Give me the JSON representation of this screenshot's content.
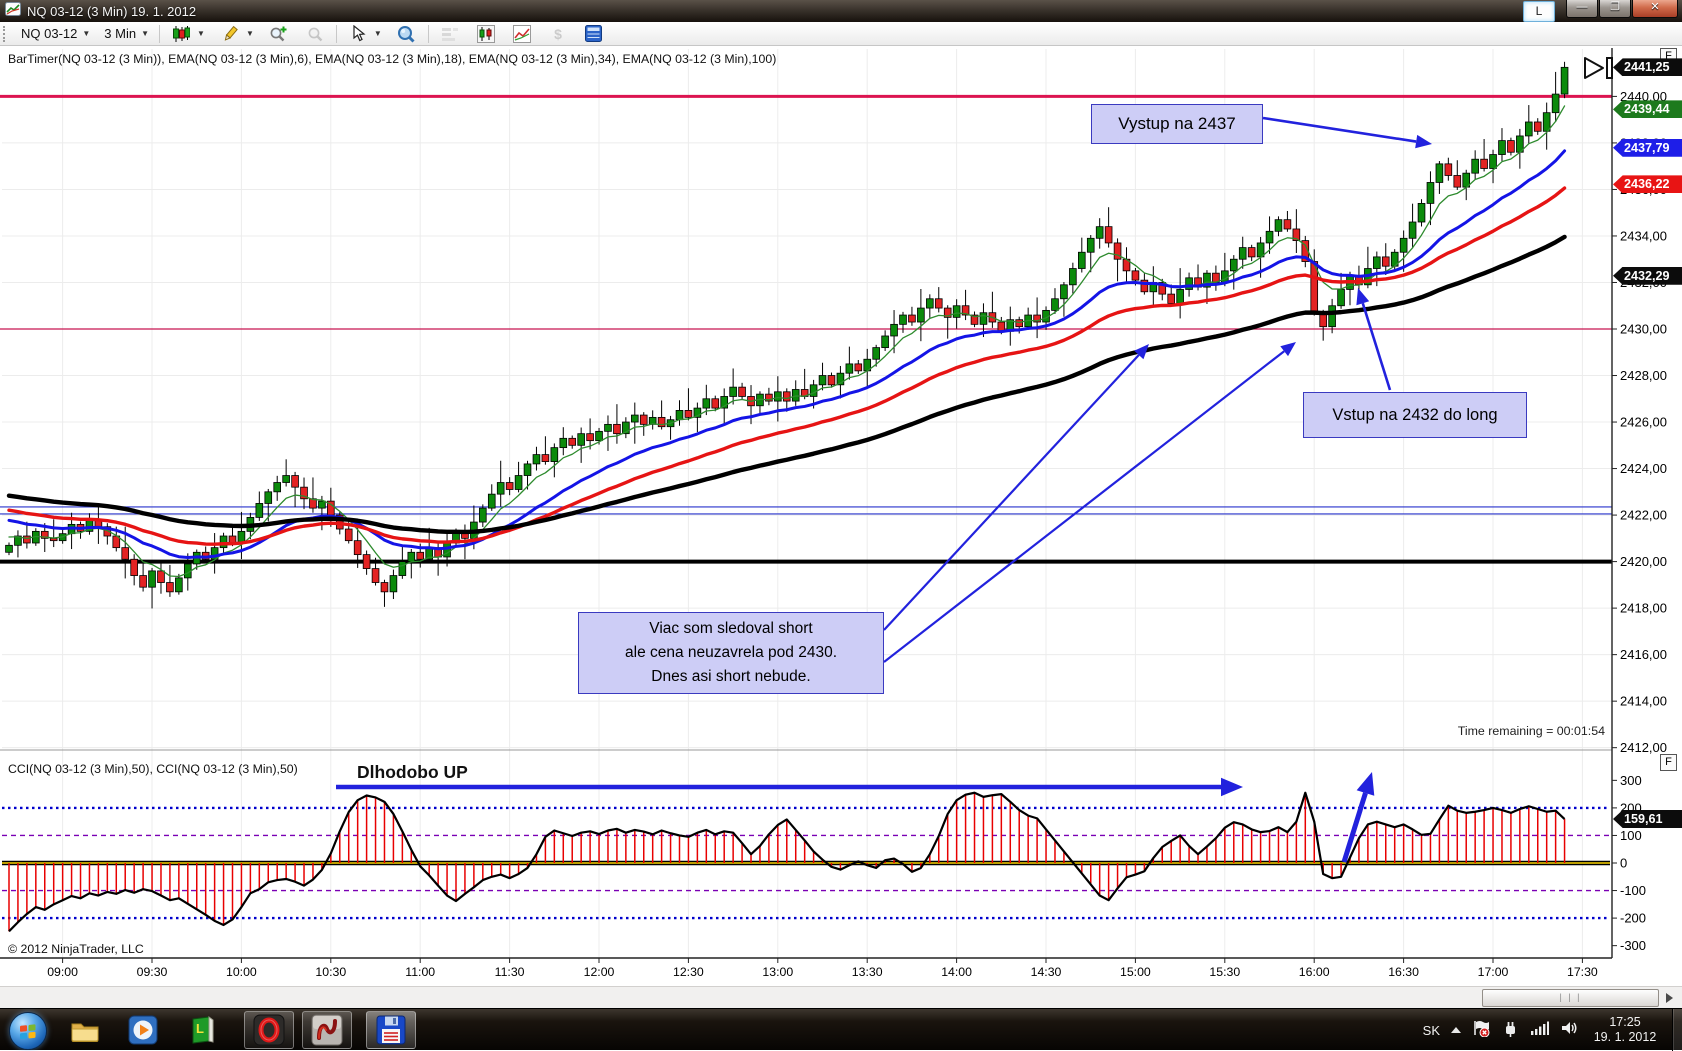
{
  "window": {
    "title": "NQ 03-12 (3 Min)  19. 1. 2012",
    "link_button": "L",
    "minimize_glyph": "—",
    "maximize_glyph": "❐",
    "close_glyph": "✕"
  },
  "toolbar": {
    "instrument": "NQ 03-12",
    "interval": "3 Min"
  },
  "price_panel": {
    "indicator_label": "BarTimer(NQ 03-12 (3 Min)), EMA(NQ 03-12 (3 Min),6), EMA(NQ 03-12 (3 Min),18), EMA(NQ 03-12 (3 Min),34), EMA(NQ 03-12 (3 Min),100)",
    "bar_timer": "Time remaining = 00:01:54",
    "focus_label": "F",
    "y_tick_labels": [
      "2440,00",
      "2438,00",
      "2436,00",
      "2434,00",
      "2432,00",
      "2430,00",
      "2428,00",
      "2426,00",
      "2424,00",
      "2422,00",
      "2420,00",
      "2418,00",
      "2416,00",
      "2414,00",
      "2412,00"
    ],
    "price_tags": [
      {
        "label": "2441,25",
        "value": 2441.25,
        "color": "#0c0c0c"
      },
      {
        "label": "2439,44",
        "value": 2439.44,
        "color": "#1d7a1d"
      },
      {
        "label": "2437,79",
        "value": 2437.79,
        "color": "#1e1ee8"
      },
      {
        "label": "2436,22",
        "value": 2436.22,
        "color": "#e81414"
      },
      {
        "label": "2432,29",
        "value": 2432.29,
        "color": "#0c0c0c"
      }
    ]
  },
  "cci_panel": {
    "indicator_label": "CCI(NQ 03-12 (3 Min),50), CCI(NQ 03-12 (3 Min),50)",
    "copyright": "© 2012 NinjaTrader, LLC",
    "focus_label": "F",
    "y_tick_labels": [
      "300",
      "200",
      "100",
      "0",
      "-100",
      "-200",
      "-300"
    ],
    "value_tag": {
      "label": "159,61",
      "value": 159.61,
      "color": "#0c0c0c"
    }
  },
  "annotations": {
    "vystup": {
      "text": "Vystup na 2437"
    },
    "vstup": {
      "text": "Vstup na 2432 do long"
    },
    "viac": {
      "lines": [
        "Viac som sledoval short",
        "ale cena neuzavrela pod 2430.",
        "Dnes asi short nebude."
      ]
    },
    "dlhodobo": {
      "text": "Dlhodobo UP"
    }
  },
  "chart_data": [
    {
      "type": "candlestick",
      "title": "NQ 03-12 (3 Min) 19. 1. 2012",
      "x_tick_labels": [
        "09:00",
        "09:30",
        "10:00",
        "10:30",
        "11:00",
        "11:30",
        "12:00",
        "12:30",
        "13:00",
        "13:30",
        "14:00",
        "14:30",
        "15:00",
        "15:30",
        "16:00",
        "16:30",
        "17:00",
        "17:30"
      ],
      "ylim": [
        2412,
        2442
      ],
      "last_price": 2441.25,
      "closes": [
        2420.7,
        2421.1,
        2420.8,
        2421.3,
        2421.0,
        2420.9,
        2421.2,
        2421.6,
        2421.3,
        2421.8,
        2421.5,
        2421.1,
        2420.6,
        2420.1,
        2419.4,
        2418.9,
        2419.6,
        2419.1,
        2418.7,
        2419.3,
        2419.9,
        2420.4,
        2420.1,
        2420.6,
        2421.1,
        2420.8,
        2421.3,
        2421.9,
        2422.5,
        2423.0,
        2423.4,
        2423.7,
        2423.2,
        2422.7,
        2422.3,
        2422.6,
        2422.0,
        2421.4,
        2420.9,
        2420.3,
        2419.7,
        2419.1,
        2418.7,
        2419.4,
        2420.0,
        2420.4,
        2420.1,
        2420.6,
        2420.2,
        2420.8,
        2421.3,
        2421.0,
        2421.7,
        2422.3,
        2422.9,
        2423.4,
        2423.1,
        2423.7,
        2424.2,
        2424.6,
        2424.3,
        2424.9,
        2425.3,
        2425.0,
        2425.5,
        2425.2,
        2425.6,
        2425.9,
        2425.5,
        2426.0,
        2426.3,
        2425.9,
        2426.2,
        2425.8,
        2426.1,
        2426.5,
        2426.2,
        2426.6,
        2427.0,
        2426.6,
        2427.1,
        2427.5,
        2427.1,
        2426.7,
        2427.2,
        2426.9,
        2427.3,
        2426.9,
        2427.4,
        2427.1,
        2427.6,
        2428.0,
        2427.6,
        2428.1,
        2428.5,
        2428.2,
        2428.7,
        2429.2,
        2429.7,
        2430.2,
        2430.6,
        2430.3,
        2430.9,
        2431.3,
        2430.9,
        2430.5,
        2431.0,
        2430.6,
        2430.2,
        2430.7,
        2430.3,
        2429.9,
        2430.4,
        2430.1,
        2430.6,
        2430.3,
        2430.8,
        2431.3,
        2431.9,
        2432.6,
        2433.3,
        2433.9,
        2434.4,
        2433.7,
        2433.0,
        2432.5,
        2432.1,
        2431.6,
        2432.0,
        2431.5,
        2431.1,
        2431.7,
        2432.2,
        2431.8,
        2432.4,
        2432.0,
        2432.5,
        2433.0,
        2433.5,
        2433.1,
        2433.7,
        2434.2,
        2434.7,
        2434.3,
        2433.8,
        2432.9,
        2430.7,
        2430.1,
        2431.0,
        2431.7,
        2432.3,
        2431.9,
        2432.6,
        2433.1,
        2432.7,
        2433.3,
        2433.9,
        2434.6,
        2435.4,
        2436.3,
        2437.1,
        2436.6,
        2436.1,
        2436.7,
        2437.3,
        2436.9,
        2437.5,
        2438.1,
        2437.6,
        2438.3,
        2438.9,
        2438.5,
        2439.3,
        2440.1,
        2441.25
      ],
      "emas": [
        {
          "period": 6,
          "color": "#2e8b2e",
          "width": 1.3,
          "seed": 2421.2,
          "last": 2439.44
        },
        {
          "period": 18,
          "color": "#1414e6",
          "width": 3,
          "seed": 2421.9,
          "last": 2437.79
        },
        {
          "period": 34,
          "color": "#e61414",
          "width": 3.4,
          "seed": 2422.3,
          "last": 2436.22
        },
        {
          "period": 100,
          "color": "#000000",
          "width": 4.4,
          "seed": 2422.9,
          "k": 0.03,
          "last": 2432.29
        }
      ],
      "hlines": [
        {
          "value": 2440,
          "color": "#dc1450",
          "width": 3
        },
        {
          "value": 2430,
          "color": "#c81450",
          "width": 1.3
        },
        {
          "value": 2422.35,
          "color": "#2833cc",
          "width": 1.2
        },
        {
          "value": 2422.05,
          "color": "#2833cc",
          "width": 1.2
        },
        {
          "value": 2420,
          "color": "#000000",
          "width": 4
        }
      ]
    },
    {
      "type": "line",
      "name": "CCI(NQ 03-12 (3 Min),50)",
      "ylim": [
        -300,
        300
      ],
      "last_value": 159.61,
      "levels": [
        {
          "value": 200,
          "style": "dotted",
          "color": "#0000cc"
        },
        {
          "value": 100,
          "style": "dashed",
          "color": "#7a00b4"
        },
        {
          "value": 0,
          "style": "solid",
          "color": "#d7b500"
        },
        {
          "value": -100,
          "style": "dashed",
          "color": "#7a00b4"
        },
        {
          "value": -200,
          "style": "dotted",
          "color": "#0000cc"
        }
      ],
      "values": [
        -248,
        -215,
        -185,
        -160,
        -170,
        -150,
        -135,
        -120,
        -128,
        -110,
        -118,
        -105,
        -112,
        -98,
        -108,
        -95,
        -102,
        -118,
        -135,
        -128,
        -148,
        -168,
        -188,
        -210,
        -225,
        -205,
        -160,
        -110,
        -95,
        -70,
        -62,
        -58,
        -68,
        -82,
        -60,
        -25,
        35,
        115,
        185,
        228,
        245,
        238,
        222,
        178,
        115,
        48,
        -12,
        -45,
        -82,
        -118,
        -138,
        -112,
        -88,
        -62,
        -50,
        -42,
        -55,
        -40,
        -18,
        32,
        95,
        118,
        108,
        98,
        110,
        115,
        105,
        118,
        124,
        110,
        120,
        114,
        104,
        118,
        108,
        100,
        95,
        110,
        120,
        104,
        115,
        110,
        72,
        32,
        62,
        104,
        138,
        158,
        120,
        82,
        42,
        12,
        -14,
        -24,
        -8,
        6,
        -8,
        -18,
        10,
        16,
        -4,
        -32,
        -18,
        32,
        98,
        178,
        228,
        248,
        255,
        240,
        246,
        250,
        222,
        192,
        172,
        162,
        122,
        82,
        42,
        2,
        -38,
        -78,
        -118,
        -135,
        -92,
        -52,
        -42,
        -30,
        18,
        58,
        80,
        100,
        62,
        32,
        60,
        90,
        128,
        148,
        140,
        122,
        112,
        116,
        130,
        112,
        150,
        255,
        150,
        -40,
        -55,
        -50,
        20,
        90,
        140,
        150,
        140,
        130,
        140,
        122,
        102,
        106,
        158,
        208,
        190,
        182,
        186,
        192,
        200,
        192,
        182,
        196,
        206,
        196,
        186,
        190,
        159.61
      ]
    }
  ],
  "taskbar": {
    "tray": {
      "language": "SK",
      "time": "17:25",
      "date": "19. 1. 2012"
    }
  }
}
